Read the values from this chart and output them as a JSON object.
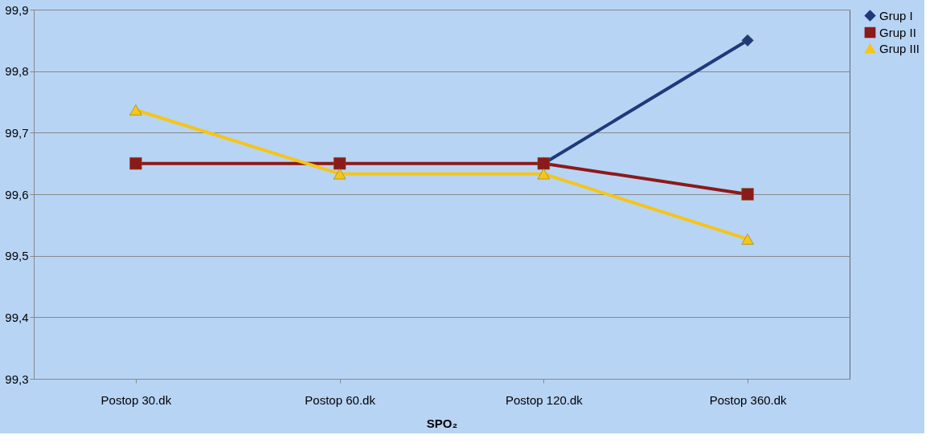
{
  "chart_data": {
    "type": "line",
    "xlabel": "SPO₂",
    "categories": [
      "Postop  30.dk",
      "Postop  60.dk",
      "Postop  120.dk",
      "Postop  360.dk"
    ],
    "series": [
      {
        "name": "Grup I",
        "color": "#1f3a7a",
        "marker": "diamond",
        "values": [
          null,
          null,
          99.65,
          99.85
        ]
      },
      {
        "name": "Grup II",
        "color": "#8b1a1a",
        "marker": "square",
        "values": [
          99.65,
          99.65,
          99.65,
          99.6
        ]
      },
      {
        "name": "Grup III",
        "color": "#f5c518",
        "marker": "triangle",
        "values": [
          99.737,
          99.633,
          99.633,
          99.527
        ]
      }
    ],
    "ylim": [
      99.3,
      99.9
    ],
    "yticks": [
      {
        "value": 99.3,
        "label": "99,3"
      },
      {
        "value": 99.4,
        "label": "99,4"
      },
      {
        "value": 99.5,
        "label": "99,5"
      },
      {
        "value": 99.6,
        "label": "99,6"
      },
      {
        "value": 99.7,
        "label": "99,7"
      },
      {
        "value": 99.8,
        "label": "99,8"
      },
      {
        "value": 99.9,
        "label": "99,9"
      }
    ],
    "grid": "y",
    "legend": "right"
  }
}
